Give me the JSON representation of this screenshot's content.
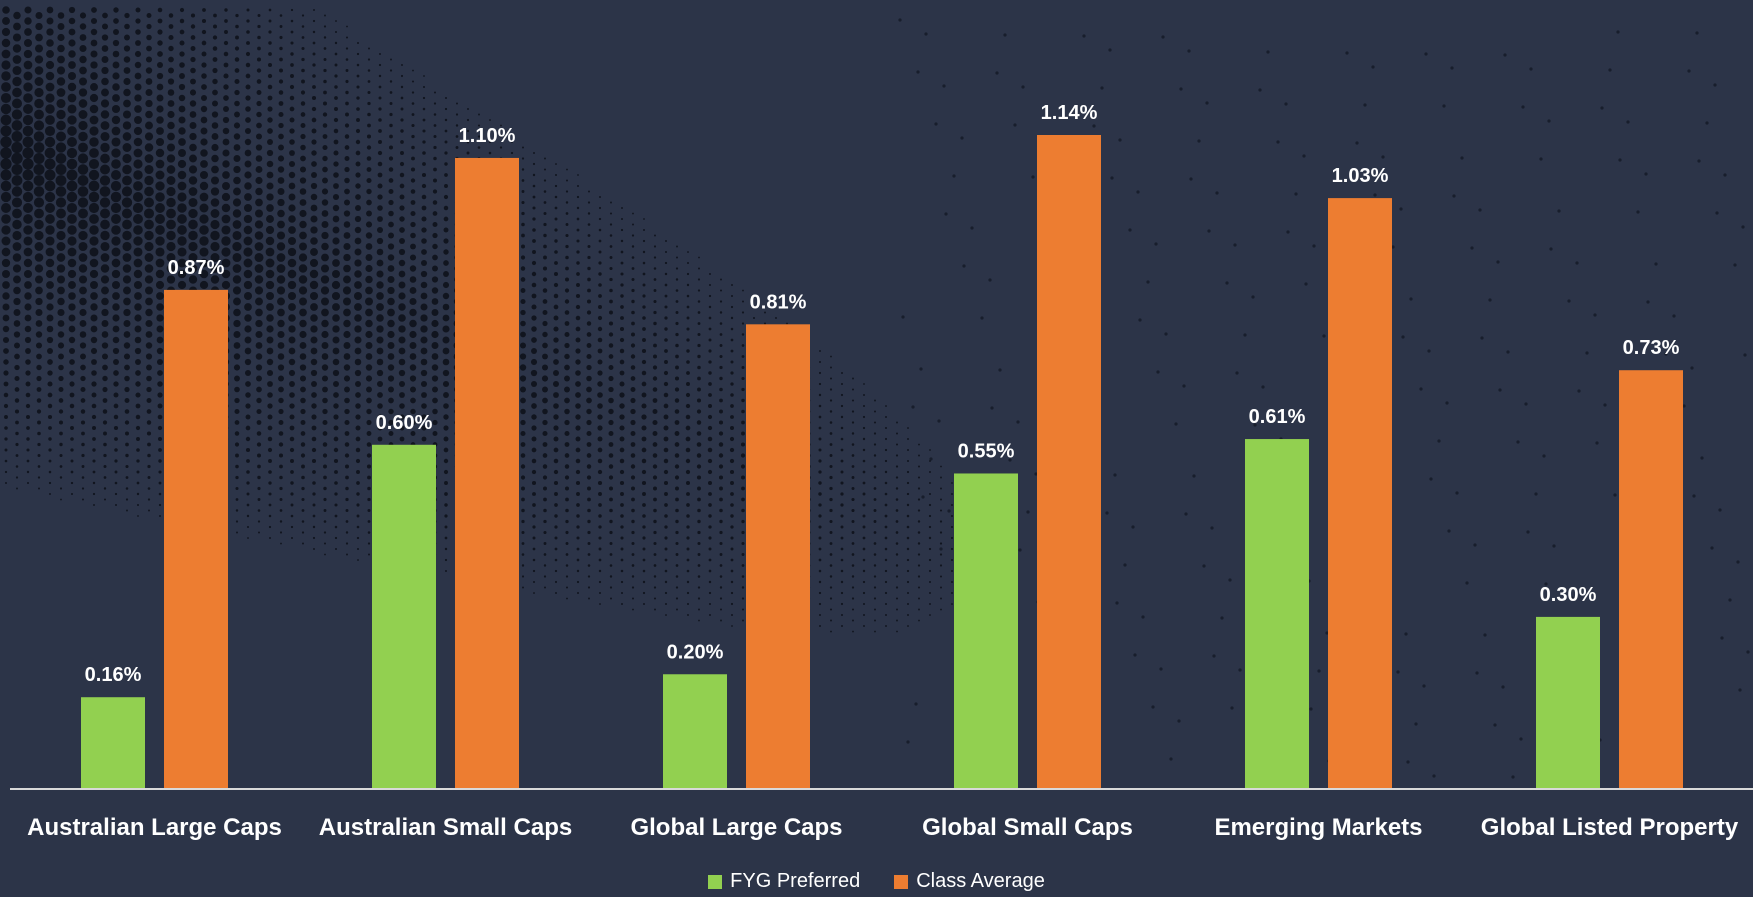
{
  "chart_data": {
    "type": "bar",
    "categories": [
      "Australian Large Caps",
      "Australian Small Caps",
      "Global Large Caps",
      "Global Small Caps",
      "Emerging Markets",
      "Global Listed Property"
    ],
    "series": [
      {
        "name": "FYG Preferred",
        "values": [
          0.16,
          0.6,
          0.2,
          0.55,
          0.61,
          0.3
        ],
        "labels": [
          "0.16%",
          "0.60%",
          "0.20%",
          "0.55%",
          "0.61%",
          "0.30%"
        ]
      },
      {
        "name": "Class Average",
        "values": [
          0.87,
          1.1,
          0.81,
          1.14,
          1.03,
          0.73
        ],
        "labels": [
          "0.87%",
          "1.10%",
          "0.81%",
          "1.14%",
          "1.03%",
          "0.73%"
        ]
      }
    ],
    "ylim": [
      0,
      1.2
    ],
    "grid": false,
    "legend_position": "bottom"
  },
  "colors": {
    "fyg_preferred": "#92d050",
    "class_average": "#ed7d31",
    "background": "#2c3448",
    "text": "#ffffff"
  }
}
